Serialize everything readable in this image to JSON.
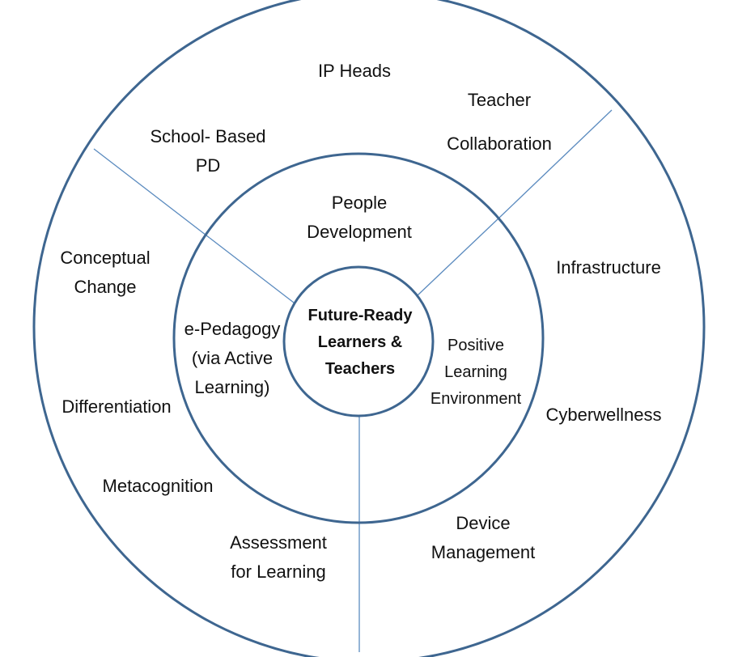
{
  "center": [
    "Future-Ready",
    "Learners &",
    "Teachers"
  ],
  "middle_ring": {
    "people": [
      "People",
      "Development"
    ],
    "pedagogy": [
      "e-Pedagogy",
      "(via Active",
      "Learning)"
    ],
    "environment": [
      "Positive",
      "Learning",
      "Environment"
    ]
  },
  "outer_ring": {
    "ip_heads": "IP Heads",
    "teacher_collaboration": [
      "Teacher",
      "Collaboration"
    ],
    "school_based_pd": [
      "School- Based",
      "PD"
    ],
    "conceptual_change": [
      "Conceptual",
      "Change"
    ],
    "differentiation": "Differentiation",
    "metacognition": "Metacognition",
    "assessment": [
      "Assessment",
      "for Learning"
    ],
    "device_management": [
      "Device",
      "Management"
    ],
    "infrastructure": "Infrastructure",
    "cyberwellness": "Cyberwellness"
  },
  "colors": {
    "ring_stroke": "#3e6690",
    "divider_stroke": "#5b8bbf"
  }
}
